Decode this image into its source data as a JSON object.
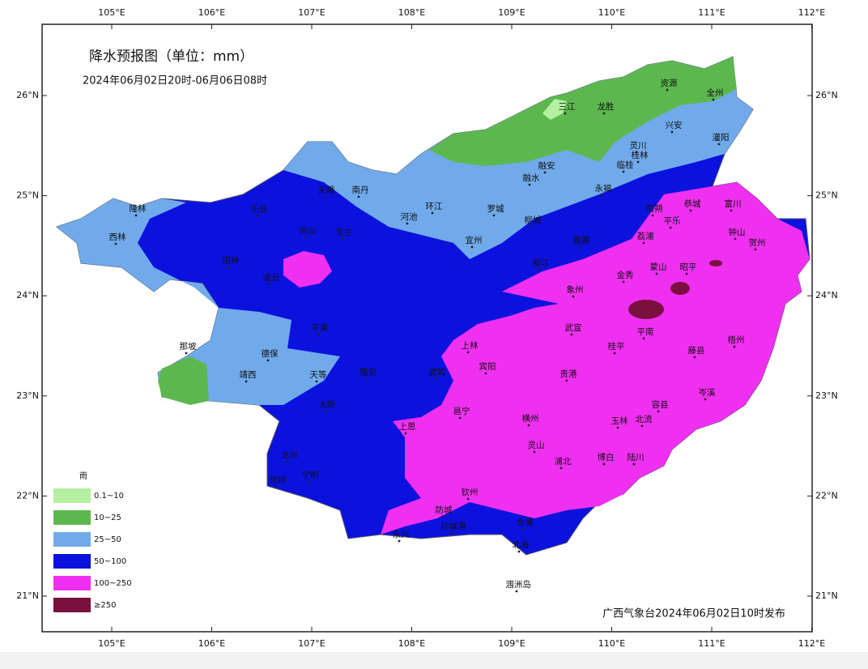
{
  "header": {
    "title": "降水预报图（单位：mm）",
    "period": "2024年06月02日20时-06月06日08时"
  },
  "axes": {
    "lon": [
      "105°E",
      "106°E",
      "107°E",
      "108°E",
      "109°E",
      "110°E",
      "111°E",
      "112°E"
    ],
    "lat": [
      "26°N",
      "25°N",
      "24°N",
      "23°N",
      "22°N",
      "21°N"
    ]
  },
  "legend": {
    "title": "雨",
    "items": [
      {
        "label": "0.1~10",
        "color": "#b4f0a0"
      },
      {
        "label": "10~25",
        "color": "#5cb84e"
      },
      {
        "label": "25~50",
        "color": "#70aaea"
      },
      {
        "label": "50~100",
        "color": "#0b12de"
      },
      {
        "label": "100~250",
        "color": "#f030f0"
      },
      {
        "label": "≥250",
        "color": "#7a1040"
      }
    ]
  },
  "cities": [
    "隆林",
    "西林",
    "那坡",
    "德保",
    "靖西",
    "天等",
    "大新",
    "龙州",
    "凭祥",
    "宁明",
    "乐业",
    "凤山",
    "东兰",
    "天峨",
    "南丹",
    "环江",
    "河池",
    "罗城",
    "融安",
    "融水",
    "三江",
    "龙胜",
    "资源",
    "全州",
    "兴安",
    "灌阳",
    "灵川",
    "桂林",
    "临桂",
    "永福",
    "阳朔",
    "恭城",
    "富川",
    "钟山",
    "贺州",
    "平乐",
    "荔浦",
    "蒙山",
    "昭平",
    "金秀",
    "象州",
    "武宣",
    "平南",
    "桂平",
    "藤县",
    "梧州",
    "岑溪",
    "容县",
    "北流",
    "玉林",
    "陆川",
    "博白",
    "浦北",
    "灵山",
    "横州",
    "贵港",
    "宾阳",
    "上林",
    "宜州",
    "柳城",
    "鹿寨",
    "柳江",
    "凌云",
    "田林",
    "平果",
    "隆安",
    "武鸣",
    "邕宁",
    "钦州",
    "防城",
    "防城港",
    "东兴",
    "合浦",
    "北海",
    "涠洲岛",
    "上思"
  ],
  "footer": "广西气象台2024年06月02日10时发布"
}
